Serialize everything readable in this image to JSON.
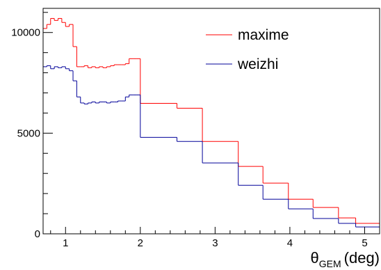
{
  "chart_data": {
    "type": "histogram",
    "xlabel": {
      "symbol": "θ",
      "subscript": "GEM",
      "unit": "(deg)"
    },
    "bins": [
      0.7,
      0.75,
      0.8,
      0.85,
      0.9,
      0.95,
      1.0,
      1.05,
      1.1,
      1.15,
      1.2,
      1.25,
      1.3,
      1.35,
      1.4,
      1.45,
      1.5,
      1.55,
      1.6,
      1.65,
      1.7,
      1.75,
      1.8,
      1.85,
      1.9,
      1.95,
      2.0,
      2.49,
      2.83,
      3.31,
      3.64,
      3.98,
      4.31,
      4.65,
      4.88,
      5.2
    ],
    "series": [
      {
        "name": "maxime",
        "color": "#ff0000",
        "values": [
          10200,
          10400,
          10700,
          10600,
          10700,
          10500,
          10300,
          10400,
          9300,
          8300,
          8300,
          8350,
          8250,
          8300,
          8250,
          8300,
          8250,
          8300,
          8350,
          8400,
          8400,
          8400,
          8450,
          8700,
          8700,
          8700,
          6480,
          6240,
          4590,
          3350,
          2520,
          1720,
          1310,
          790,
          520
        ]
      },
      {
        "name": "weizhi",
        "color": "#000099",
        "values": [
          8300,
          8350,
          8200,
          8300,
          8250,
          8300,
          8200,
          8100,
          7600,
          6800,
          6500,
          6450,
          6500,
          6550,
          6500,
          6550,
          6550,
          6500,
          6550,
          6550,
          6600,
          6600,
          6800,
          6900,
          6900,
          6900,
          4790,
          4590,
          3520,
          2410,
          1720,
          1240,
          760,
          520,
          340
        ]
      }
    ],
    "xlim": [
      0.7,
      5.2
    ],
    "xticks": [
      1,
      2,
      3,
      4,
      5
    ],
    "xminorticks": [
      0.8,
      1.2,
      1.4,
      1.6,
      1.8,
      2.2,
      2.4,
      2.6,
      2.8,
      3.2,
      3.4,
      3.6,
      3.8,
      4.2,
      4.4,
      4.6,
      4.8,
      5.2
    ],
    "ylim": [
      0,
      11200
    ],
    "yticks": [
      0,
      5000,
      10000
    ],
    "yminorticks": [
      1000,
      2000,
      3000,
      4000,
      6000,
      7000,
      8000,
      9000,
      11000
    ],
    "legend": "top-center"
  }
}
